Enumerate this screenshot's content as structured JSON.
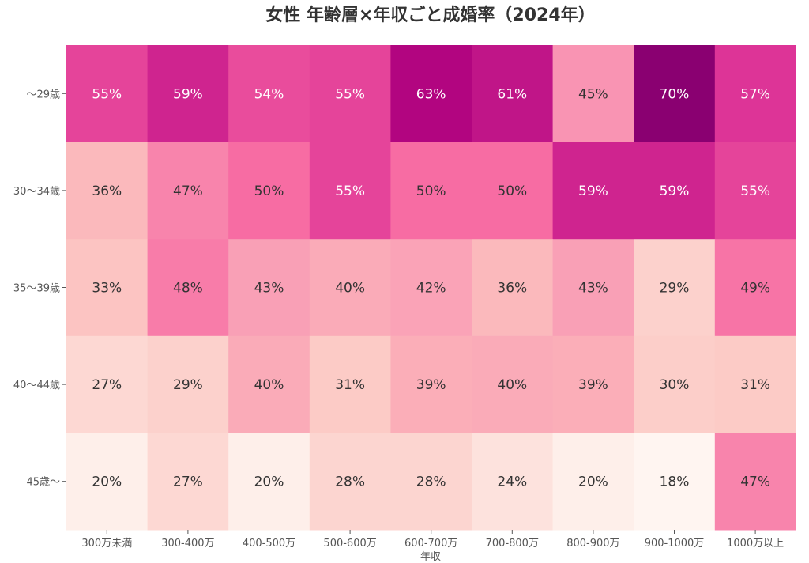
{
  "chart_data": {
    "type": "heatmap",
    "title": "女性 年齢層×年収ごと成婚率（2024年）",
    "xlabel": "年収",
    "ylabel": "",
    "x_categories": [
      "300万未満",
      "300-400万",
      "400-500万",
      "500-600万",
      "600-700万",
      "700-800万",
      "800-900万",
      "900-1000万",
      "1000万以上"
    ],
    "y_categories": [
      "〜29歳",
      "30〜34歳",
      "35〜39歳",
      "40〜44歳",
      "45歳〜"
    ],
    "values": [
      [
        55,
        59,
        54,
        55,
        63,
        61,
        45,
        70,
        57
      ],
      [
        36,
        47,
        50,
        55,
        50,
        50,
        59,
        59,
        55
      ],
      [
        33,
        48,
        43,
        40,
        42,
        36,
        43,
        29,
        49
      ],
      [
        27,
        29,
        40,
        31,
        39,
        40,
        39,
        30,
        31
      ],
      [
        20,
        27,
        20,
        28,
        28,
        24,
        20,
        18,
        47
      ]
    ],
    "value_suffix": "%",
    "color_scale": {
      "min": 18,
      "max": 70,
      "colors": [
        "#fff5f1",
        "#fde0db",
        "#fccbc6",
        "#fbb4b9",
        "#f99cb6",
        "#f768a1",
        "#dd3497",
        "#ae017e",
        "#8a0071"
      ]
    },
    "text_colors": {
      "dark": "#333333",
      "light": "#ffffff"
    },
    "grid": false,
    "legend": "none"
  }
}
